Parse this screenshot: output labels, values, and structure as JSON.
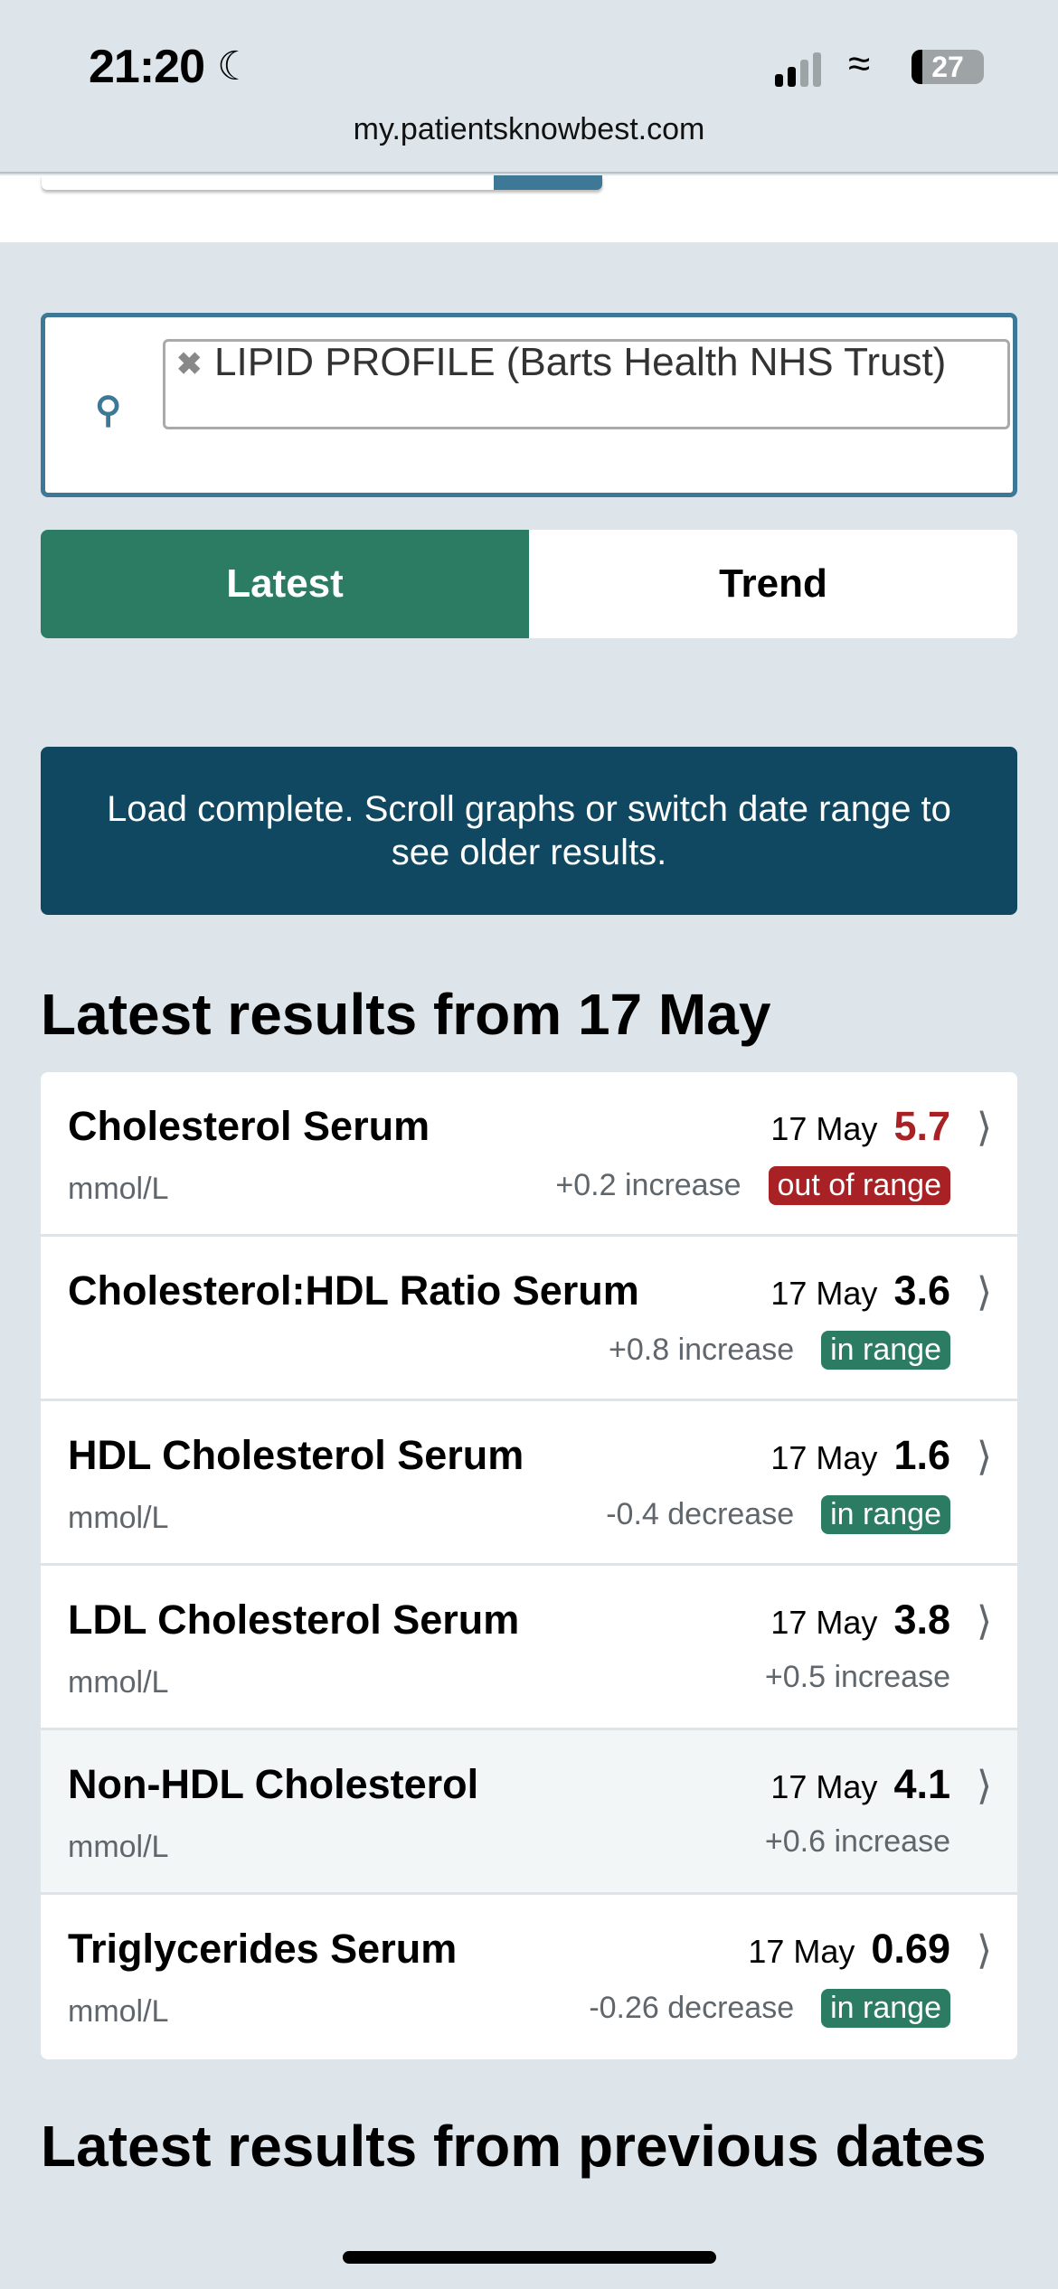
{
  "status_bar": {
    "time": "21:20",
    "battery": "27",
    "url": "my.patientsknowbest.com"
  },
  "search": {
    "chip_label": "LIPID PROFILE (Barts Health NHS Trust)"
  },
  "tabs": [
    {
      "label": "Latest",
      "active": true
    },
    {
      "label": "Trend",
      "active": false
    }
  ],
  "banner": "Load complete. Scroll graphs or switch date range to see older results.",
  "latest_heading": "Latest results from 17 May",
  "results": [
    {
      "name": "Cholesterol Serum",
      "unit": "mmol/L",
      "date": "17 May",
      "value": "5.7",
      "change": "+0.2 increase",
      "status": "out of range"
    },
    {
      "name": "Cholesterol:HDL Ratio Serum",
      "unit": "",
      "date": "17 May",
      "value": "3.6",
      "change": "+0.8 increase",
      "status": "in range"
    },
    {
      "name": "HDL Cholesterol Serum",
      "unit": "mmol/L",
      "date": "17 May",
      "value": "1.6",
      "change": "-0.4 decrease",
      "status": "in range"
    },
    {
      "name": "LDL Cholesterol Serum",
      "unit": "mmol/L",
      "date": "17 May",
      "value": "3.8",
      "change": "+0.5 increase",
      "status": ""
    },
    {
      "name": "Non-HDL Cholesterol",
      "unit": "mmol/L",
      "date": "17 May",
      "value": "4.1",
      "change": "+0.6 increase",
      "status": ""
    },
    {
      "name": "Triglycerides Serum",
      "unit": "mmol/L",
      "date": "17 May",
      "value": "0.69",
      "change": "-0.26 decrease",
      "status": "in range"
    }
  ],
  "previous_heading": "Latest results from previous dates",
  "colors": {
    "primary": "#2c7c64",
    "out_of_range": "#a82225",
    "banner": "#0f4860",
    "accent": "#3d7896"
  }
}
